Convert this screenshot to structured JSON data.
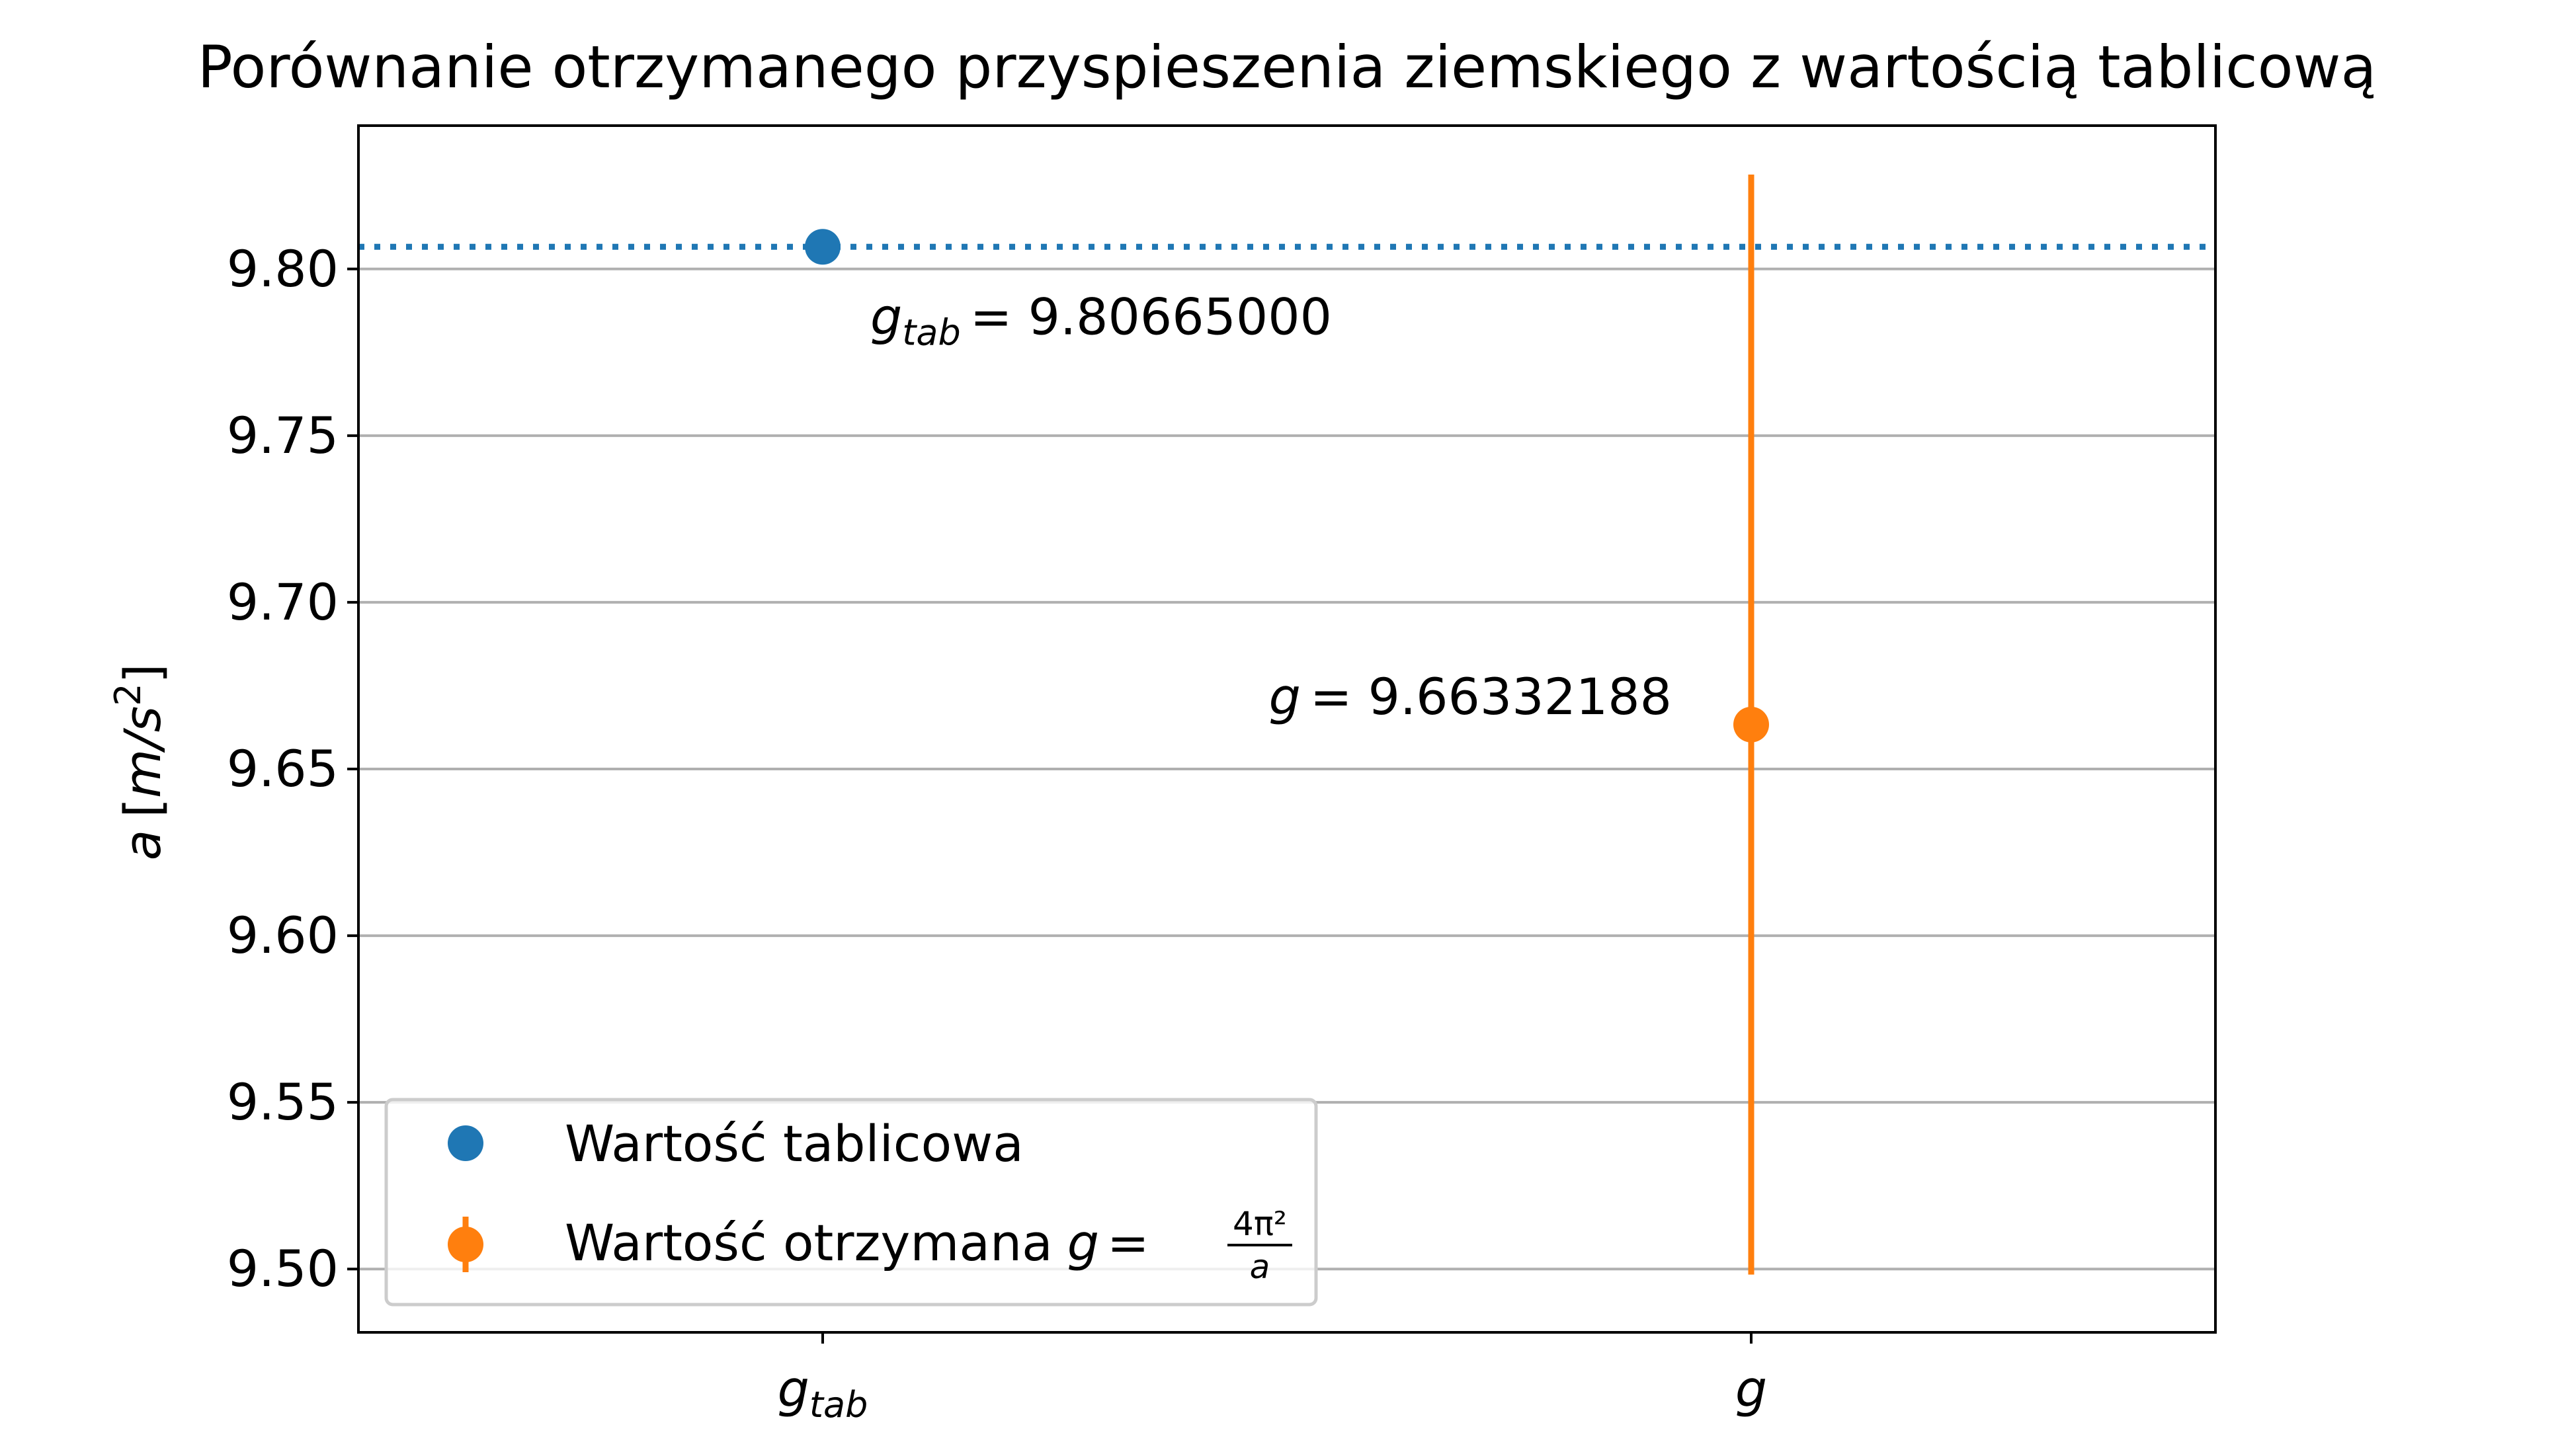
{
  "chart_data": {
    "type": "scatter",
    "title": "Porównanie otrzymanego przyspieszenia ziemskiego z wartością tablicową",
    "ylabel": "a [m/s²]",
    "ylabel_parts": {
      "var": "a",
      "open": "[",
      "unit": "m/s",
      "exp": "2",
      "close": "]"
    },
    "xlabel": "",
    "ylim": [
      9.481,
      9.843
    ],
    "xlim": [
      -0.5,
      1.5
    ],
    "yticks": [
      9.5,
      9.55,
      9.6,
      9.65,
      9.7,
      9.75,
      9.8
    ],
    "ytick_labels": [
      "9.50",
      "9.55",
      "9.60",
      "9.65",
      "9.70",
      "9.75",
      "9.80"
    ],
    "grid": {
      "y": true,
      "x": false
    },
    "categories": [
      {
        "main": "g",
        "sub": "tab"
      },
      {
        "main": "g",
        "sub": ""
      }
    ],
    "reference_line": {
      "y": 9.80665,
      "style": "dotted",
      "color": "#1f77b4"
    },
    "series": [
      {
        "name": "Wartość tablicowa",
        "color": "#1f77b4",
        "x": 0,
        "y": 9.80665,
        "annotation": {
          "lhs_main": "g",
          "lhs_sub": "tab",
          "text": "= 9.80665000"
        }
      },
      {
        "name": "Wartość otrzymana",
        "name_formula": {
          "lhs": "g",
          "eq": "=",
          "num": "4π²",
          "den": "a"
        },
        "color": "#ff7f0e",
        "x": 1,
        "y": 9.66332188,
        "yerr": 0.165,
        "annotation": {
          "lhs_main": "g",
          "lhs_sub": "",
          "text": "= 9.66332188"
        }
      }
    ],
    "legend": {
      "placement": "lower left"
    }
  }
}
